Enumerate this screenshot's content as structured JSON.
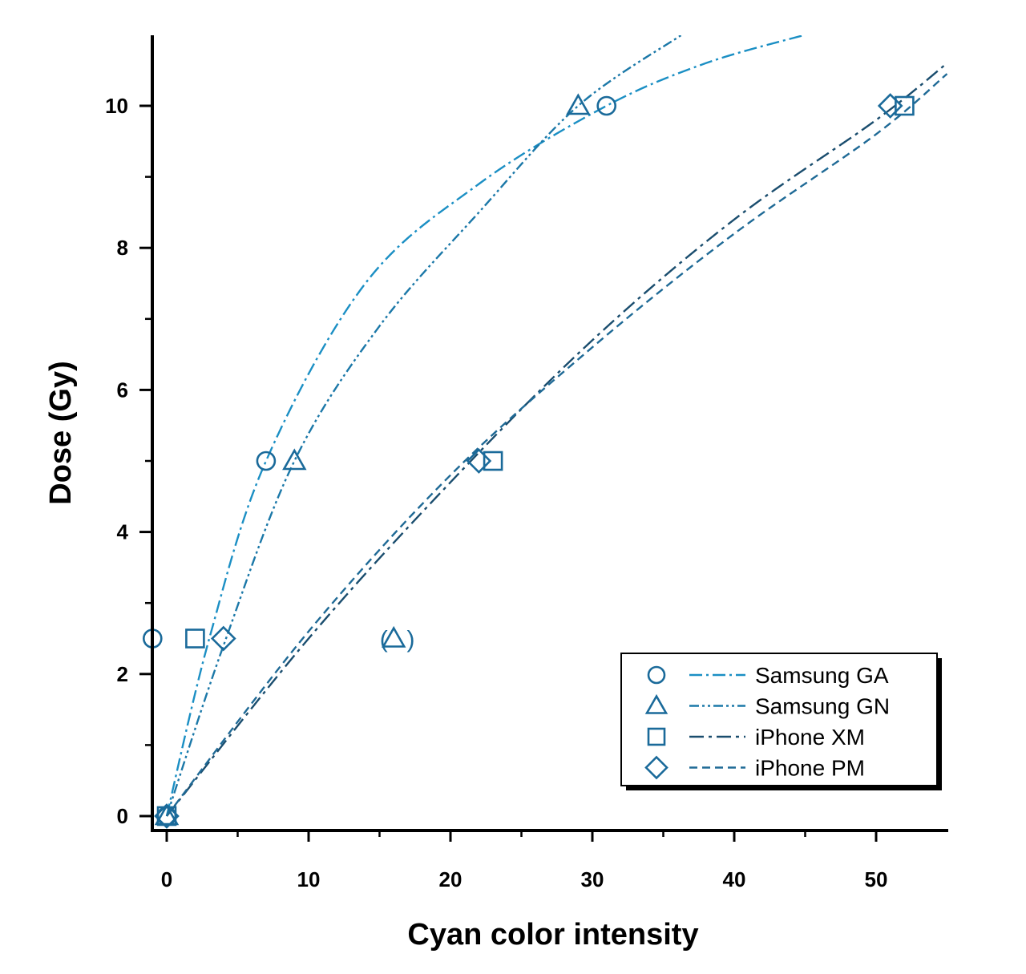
{
  "chart_data": {
    "type": "scatter",
    "xlabel": "Cyan color intensity",
    "ylabel": "Dose (Gy)",
    "xlim": [
      -1,
      55
    ],
    "ylim": [
      -0.2,
      11
    ],
    "xticks": [
      "0",
      "10",
      "20",
      "30",
      "40",
      "50"
    ],
    "yticks": [
      "0",
      "2",
      "4",
      "6",
      "8",
      "10"
    ],
    "legend_position": "bottom-right",
    "grid": false,
    "colors": {
      "Samsung GA": "#1b8fc4",
      "Samsung GN": "#1b78a8",
      "iPhone XM": "#1a4d6e",
      "iPhone PM": "#1f6a96",
      "marker": "#1a6a9a"
    },
    "series": [
      {
        "name": "Samsung GA",
        "marker": "circle",
        "line_style": "dash-dot",
        "points": [
          {
            "x": 0,
            "y": 0
          },
          {
            "x": -1,
            "y": 2.5
          },
          {
            "x": 7,
            "y": 5
          },
          {
            "x": 31,
            "y": 10
          }
        ],
        "fit": [
          {
            "x": 0,
            "y": 0
          },
          {
            "x": 3,
            "y": 2.5
          },
          {
            "x": 7,
            "y": 5
          },
          {
            "x": 14,
            "y": 7.5
          },
          {
            "x": 22,
            "y": 8.9
          },
          {
            "x": 31,
            "y": 10
          },
          {
            "x": 38,
            "y": 10.6
          },
          {
            "x": 45,
            "y": 11
          }
        ]
      },
      {
        "name": "Samsung GN",
        "marker": "triangle",
        "line_style": "dash-dot-dot",
        "points": [
          {
            "x": 0,
            "y": 0
          },
          {
            "x": 9,
            "y": 5
          },
          {
            "x": 29,
            "y": 10
          }
        ],
        "fit": [
          {
            "x": 0,
            "y": 0
          },
          {
            "x": 4,
            "y": 2.4
          },
          {
            "x": 9,
            "y": 5
          },
          {
            "x": 15,
            "y": 6.9
          },
          {
            "x": 22,
            "y": 8.5
          },
          {
            "x": 29,
            "y": 10
          },
          {
            "x": 36.3,
            "y": 11
          }
        ]
      },
      {
        "name": "iPhone XM",
        "marker": "square",
        "line_style": "long-dash-dot",
        "points": [
          {
            "x": 0,
            "y": 0
          },
          {
            "x": 2,
            "y": 2.5
          },
          {
            "x": 23,
            "y": 5
          },
          {
            "x": 52,
            "y": 10
          }
        ],
        "fit": [
          {
            "x": 0,
            "y": 0
          },
          {
            "x": 10,
            "y": 2.5
          },
          {
            "x": 20,
            "y": 4.7
          },
          {
            "x": 30,
            "y": 6.7
          },
          {
            "x": 40,
            "y": 8.4
          },
          {
            "x": 50,
            "y": 9.8
          },
          {
            "x": 55,
            "y": 10.6
          }
        ]
      },
      {
        "name": "iPhone PM",
        "marker": "diamond",
        "line_style": "dashed",
        "points": [
          {
            "x": 0,
            "y": 0
          },
          {
            "x": 4,
            "y": 2.5
          },
          {
            "x": 22,
            "y": 5
          },
          {
            "x": 51,
            "y": 10
          }
        ],
        "fit": [
          {
            "x": 0,
            "y": 0
          },
          {
            "x": 10,
            "y": 2.6
          },
          {
            "x": 20,
            "y": 4.8
          },
          {
            "x": 30,
            "y": 6.6
          },
          {
            "x": 40,
            "y": 8.2
          },
          {
            "x": 50,
            "y": 9.6
          },
          {
            "x": 55,
            "y": 10.45
          }
        ]
      }
    ],
    "annotations": [
      {
        "text": "(",
        "x": 15.3,
        "y": 2.5
      },
      {
        "text": ")",
        "x": 17.2,
        "y": 2.5
      }
    ],
    "outlier": {
      "series": "Samsung GN",
      "marker": "triangle",
      "x": 16,
      "y": 2.5
    }
  }
}
